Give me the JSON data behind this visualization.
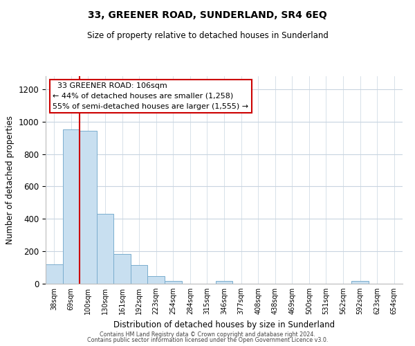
{
  "title": "33, GREENER ROAD, SUNDERLAND, SR4 6EQ",
  "subtitle": "Size of property relative to detached houses in Sunderland",
  "xlabel": "Distribution of detached houses by size in Sunderland",
  "ylabel": "Number of detached properties",
  "bar_labels": [
    "38sqm",
    "69sqm",
    "100sqm",
    "130sqm",
    "161sqm",
    "192sqm",
    "223sqm",
    "254sqm",
    "284sqm",
    "315sqm",
    "346sqm",
    "377sqm",
    "408sqm",
    "438sqm",
    "469sqm",
    "500sqm",
    "531sqm",
    "562sqm",
    "592sqm",
    "623sqm",
    "654sqm"
  ],
  "bar_values": [
    120,
    950,
    945,
    430,
    185,
    115,
    48,
    18,
    0,
    0,
    18,
    0,
    0,
    0,
    0,
    0,
    0,
    0,
    15,
    0,
    0
  ],
  "bar_color": "#c8dff0",
  "bar_edge_color": "#7aadce",
  "property_label": "33 GREENER ROAD: 106sqm",
  "annotation_line1": "← 44% of detached houses are smaller (1,258)",
  "annotation_line2": "55% of semi-detached houses are larger (1,555) →",
  "vline_x": 1.5,
  "vline_color": "#cc0000",
  "ylim": [
    0,
    1280
  ],
  "yticks": [
    0,
    200,
    400,
    600,
    800,
    1000,
    1200
  ],
  "annotation_box_color": "#ffffff",
  "annotation_box_edge": "#cc0000",
  "footer_line1": "Contains HM Land Registry data © Crown copyright and database right 2024.",
  "footer_line2": "Contains public sector information licensed under the Open Government Licence v3.0.",
  "background_color": "#ffffff",
  "grid_color": "#c8d4e0"
}
